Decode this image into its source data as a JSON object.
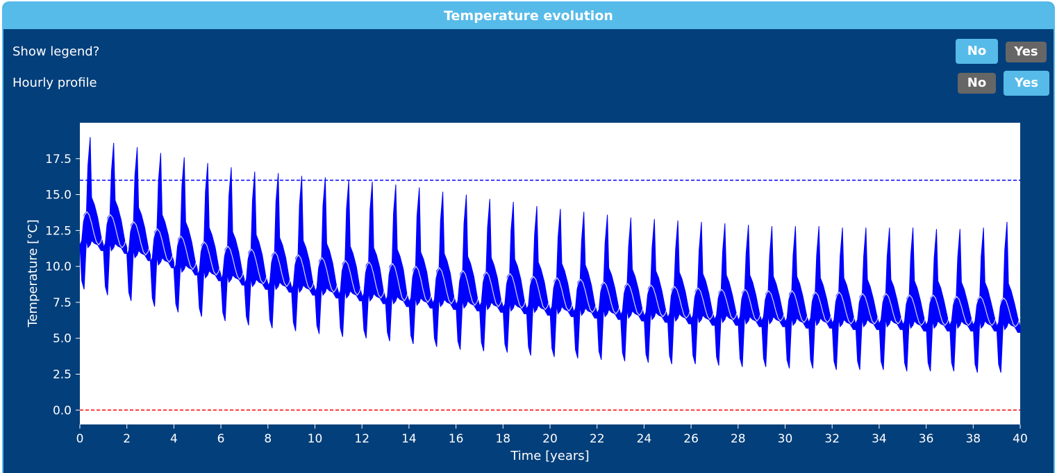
{
  "panel": {
    "title": "Temperature evolution"
  },
  "controls": {
    "legend": {
      "label": "Show legend?",
      "no": "No",
      "yes": "Yes",
      "selected": "No"
    },
    "hourly": {
      "label": "Hourly profile",
      "no": "No",
      "yes": "Yes",
      "selected": "Yes"
    }
  },
  "colors": {
    "panel_bg": "#033f7b",
    "accent": "#56bbe9",
    "inactive_button": "#666666",
    "series": "#0000ff",
    "upper_limit": "#0000ff",
    "lower_limit": "#ff0000"
  },
  "chart_data": {
    "type": "line",
    "xlabel": "Time [years]",
    "ylabel": "Temperature [°C]",
    "xlim": [
      0,
      40
    ],
    "ylim": [
      -1,
      20
    ],
    "xticks": [
      0,
      2,
      4,
      6,
      8,
      10,
      12,
      14,
      16,
      18,
      20,
      22,
      24,
      26,
      28,
      30,
      32,
      34,
      36,
      38,
      40
    ],
    "yticks": [
      0.0,
      2.5,
      5.0,
      7.5,
      10.0,
      12.5,
      15.0,
      17.5
    ],
    "ytick_labels": [
      "0.0",
      "2.5",
      "5.0",
      "7.5",
      "10.0",
      "12.5",
      "15.0",
      "17.5"
    ],
    "grid": false,
    "legend": false,
    "series": [
      {
        "style": "hourly temperature band, yearly cycle",
        "years": [
          0,
          1,
          2,
          3,
          4,
          5,
          6,
          7,
          8,
          9,
          10,
          11,
          12,
          13,
          14,
          15,
          16,
          17,
          18,
          19,
          20,
          21,
          22,
          23,
          24,
          25,
          26,
          27,
          28,
          29,
          30,
          31,
          32,
          33,
          34,
          35,
          36,
          37,
          38,
          39
        ],
        "peak_max": [
          19.0,
          18.6,
          18.3,
          17.9,
          17.6,
          17.2,
          16.9,
          16.6,
          16.5,
          16.3,
          16.2,
          16.0,
          15.9,
          15.7,
          15.5,
          15.2,
          15.0,
          14.7,
          14.5,
          14.2,
          14.0,
          13.8,
          13.6,
          13.4,
          13.3,
          13.2,
          13.1,
          13.0,
          12.9,
          12.8,
          12.8,
          12.8,
          12.7,
          12.7,
          12.7,
          12.7,
          12.6,
          12.6,
          12.7,
          13.1
        ],
        "mean_max": [
          13.8,
          13.6,
          13.1,
          12.6,
          12.1,
          11.7,
          11.4,
          11.2,
          11.0,
          10.8,
          10.6,
          10.4,
          10.3,
          10.2,
          10.0,
          9.9,
          9.7,
          9.6,
          9.5,
          9.3,
          9.2,
          9.1,
          8.9,
          8.8,
          8.7,
          8.6,
          8.5,
          8.4,
          8.4,
          8.3,
          8.3,
          8.2,
          8.2,
          8.1,
          8.1,
          8.0,
          8.0,
          7.9,
          7.9,
          7.8
        ],
        "mean_min": [
          11.5,
          11.3,
          10.8,
          10.3,
          9.8,
          9.4,
          9.1,
          8.8,
          8.6,
          8.4,
          8.2,
          8.0,
          7.8,
          7.6,
          7.5,
          7.4,
          7.3,
          7.2,
          7.1,
          7.0,
          6.9,
          6.8,
          6.7,
          6.6,
          6.5,
          6.4,
          6.3,
          6.3,
          6.2,
          6.2,
          6.1,
          6.1,
          6.0,
          6.0,
          6.0,
          5.9,
          5.9,
          5.9,
          5.9,
          5.8
        ],
        "trough_min": [
          8.4,
          8.0,
          7.6,
          7.2,
          6.8,
          6.5,
          6.2,
          5.9,
          5.7,
          5.5,
          5.3,
          5.1,
          5.0,
          4.8,
          4.6,
          4.4,
          4.2,
          4.1,
          4.0,
          3.8,
          3.7,
          3.6,
          3.5,
          3.4,
          3.3,
          3.2,
          3.2,
          3.1,
          3.0,
          3.0,
          2.9,
          2.9,
          2.8,
          2.8,
          2.8,
          2.7,
          2.7,
          2.7,
          2.6,
          2.6
        ]
      }
    ],
    "reference_lines": [
      {
        "y": 16.0,
        "style": "dashed",
        "color": "#0000ff"
      },
      {
        "y": 0.0,
        "style": "dashed",
        "color": "#ff0000"
      }
    ]
  }
}
